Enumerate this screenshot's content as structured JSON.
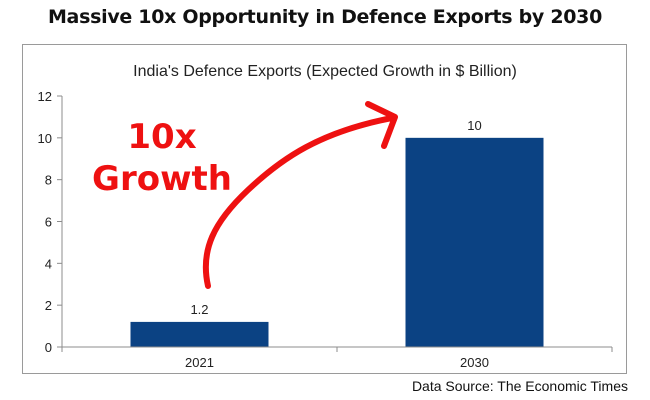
{
  "headline": "Massive 10x Opportunity in Defence Exports by 2030",
  "source": "Data Source: The Economic Times",
  "annotation": {
    "line1": "10x",
    "line2": "Growth",
    "color": "#ee1111"
  },
  "colors": {
    "bar": "#0b4283",
    "axis": "#8c8c8c"
  },
  "chart_data": {
    "type": "bar",
    "title": "India's Defence Exports (Expected Growth in $ Billion)",
    "categories": [
      "2021",
      "2030"
    ],
    "values": [
      1.2,
      10
    ],
    "data_labels": [
      "1.2",
      "10"
    ],
    "xlabel": "",
    "ylabel": "",
    "ylim": [
      0,
      12
    ],
    "yticks": [
      0,
      2,
      4,
      6,
      8,
      10,
      12
    ],
    "grid": false,
    "legend": "none",
    "unit": "$ Billion"
  }
}
